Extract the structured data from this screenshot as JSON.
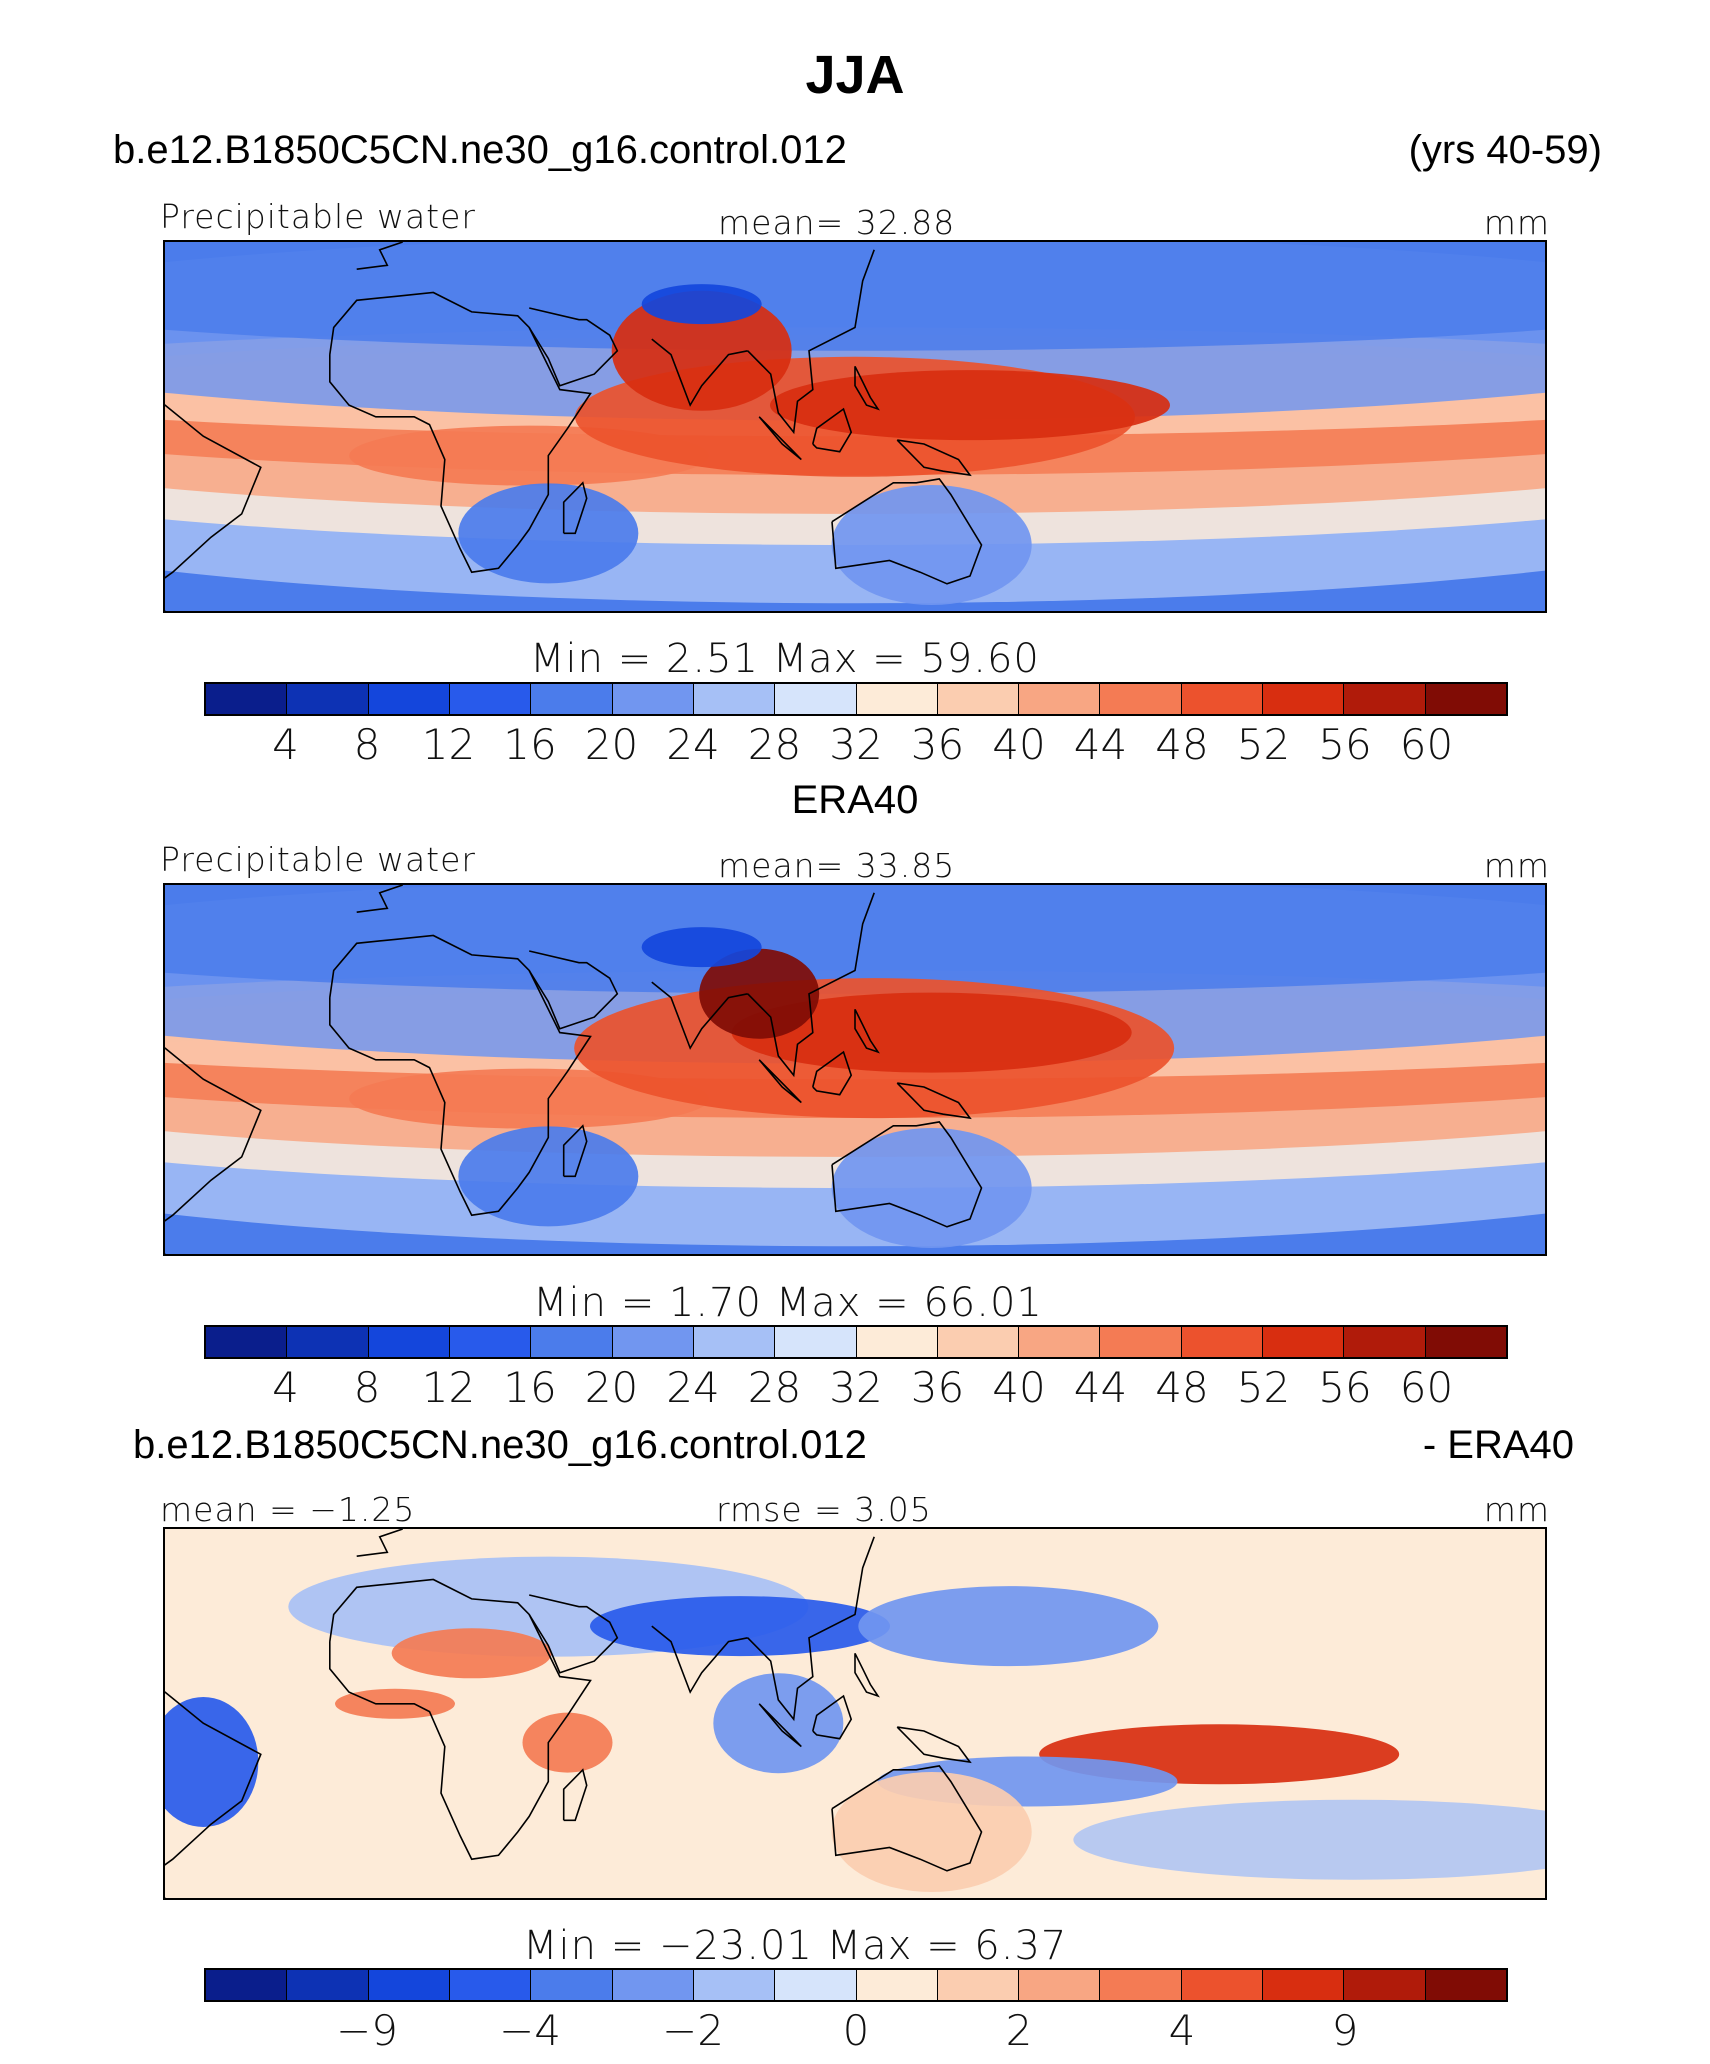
{
  "title": "JJA",
  "case_name": "b.e12.B1850C5CN.ne30_g16.control.012",
  "years": "(yrs 40-59)",
  "reference_name": "ERA40",
  "diff_case": "b.e12.B1850C5CN.ne30_g16.control.012",
  "diff_suffix": "- ERA40",
  "panels": [
    {
      "id": "model",
      "left_label": "Precipitable water",
      "center_label": "mean=   32.88",
      "units": "mm",
      "minmax": "Min  =     2.51  Max  =    59.60",
      "regions": [
        {
          "lon": 35,
          "lat": -5,
          "w": 360,
          "h": 60,
          "level": "44"
        },
        {
          "lon": 120,
          "lat": 5,
          "w": 560,
          "h": 120,
          "level": "48"
        },
        {
          "lon": 150,
          "lat": 8,
          "w": 400,
          "h": 70,
          "level": "52"
        },
        {
          "lon": 80,
          "lat": 22,
          "w": 180,
          "h": 120,
          "level": "52"
        },
        {
          "lon": 40,
          "lat": -25,
          "w": 180,
          "h": 100,
          "level": "16"
        },
        {
          "lon": 80,
          "lat": 34,
          "w": 120,
          "h": 40,
          "level": "8"
        },
        {
          "lon": 140,
          "lat": -28,
          "w": 200,
          "h": 120,
          "level": "20"
        }
      ]
    },
    {
      "id": "obs",
      "left_label": "Precipitable water",
      "center_label": "mean=   33.85",
      "units": "mm",
      "minmax": "Min  =     1.70  Max  =    66.01",
      "regions": [
        {
          "lon": 35,
          "lat": -5,
          "w": 360,
          "h": 60,
          "level": "44"
        },
        {
          "lon": 125,
          "lat": 8,
          "w": 600,
          "h": 140,
          "level": "48"
        },
        {
          "lon": 140,
          "lat": 12,
          "w": 400,
          "h": 80,
          "level": "52"
        },
        {
          "lon": 95,
          "lat": 22,
          "w": 120,
          "h": 90,
          "level": "60"
        },
        {
          "lon": 40,
          "lat": -25,
          "w": 180,
          "h": 100,
          "level": "16"
        },
        {
          "lon": 80,
          "lat": 34,
          "w": 120,
          "h": 40,
          "level": "8"
        },
        {
          "lon": 140,
          "lat": -28,
          "w": 200,
          "h": 120,
          "level": "20"
        }
      ]
    },
    {
      "id": "diff",
      "left_label": "mean  =   −1.25",
      "center_label": "rmse  =      3.05",
      "units": "mm",
      "minmax": "Min  =  −23.01  Max  =     6.37",
      "regions": [
        {
          "lon": 90,
          "lat": 25,
          "w": 300,
          "h": 60,
          "level": "-4"
        },
        {
          "lon": 160,
          "lat": 25,
          "w": 300,
          "h": 80,
          "level": "-2"
        },
        {
          "lon": -50,
          "lat": -10,
          "w": 110,
          "h": 130,
          "level": "-4"
        },
        {
          "lon": 20,
          "lat": 18,
          "w": 160,
          "h": 50,
          "level": "2"
        },
        {
          "lon": 0,
          "lat": 5,
          "w": 120,
          "h": 30,
          "level": "2"
        },
        {
          "lon": 215,
          "lat": -8,
          "w": 360,
          "h": 60,
          "level": "4"
        },
        {
          "lon": 165,
          "lat": -15,
          "w": 300,
          "h": 50,
          "level": "-2"
        },
        {
          "lon": 100,
          "lat": 0,
          "w": 130,
          "h": 100,
          "level": "-2"
        },
        {
          "lon": 45,
          "lat": -5,
          "w": 90,
          "h": 60,
          "level": "2"
        },
        {
          "lon": 140,
          "lat": -28,
          "w": 200,
          "h": 120,
          "level": "0.5"
        }
      ]
    }
  ],
  "colorbars": {
    "pw": {
      "colors": [
        "#0a1e8c",
        "#0d32b4",
        "#1446dc",
        "#285aeb",
        "#4b7ceb",
        "#7196f0",
        "#a6c0f6",
        "#d6e4fb",
        "#fdebd8",
        "#fbcdb0",
        "#f8a683",
        "#f47b54",
        "#ec522d",
        "#d82e10",
        "#b01b0a",
        "#800c05"
      ],
      "ticks": [
        "4",
        "8",
        "12",
        "16",
        "20",
        "24",
        "28",
        "32",
        "36",
        "40",
        "44",
        "48",
        "52",
        "56",
        "60"
      ]
    },
    "diff": {
      "colors": [
        "#0a1e8c",
        "#0d32b4",
        "#1446dc",
        "#285aeb",
        "#4b7ceb",
        "#7196f0",
        "#a6c0f6",
        "#d6e4fb",
        "#fdebd8",
        "#fbcdb0",
        "#f8a683",
        "#f47b54",
        "#ec522d",
        "#d82e10",
        "#b01b0a",
        "#800c05"
      ],
      "ticks": [
        {
          "label": "−9",
          "pos": 2
        },
        {
          "label": "−4",
          "pos": 4
        },
        {
          "label": "−2",
          "pos": 6
        },
        {
          "label": "0",
          "pos": 8
        },
        {
          "label": "2",
          "pos": 10
        },
        {
          "label": "4",
          "pos": 12
        },
        {
          "label": "9",
          "pos": 14
        }
      ]
    }
  }
}
